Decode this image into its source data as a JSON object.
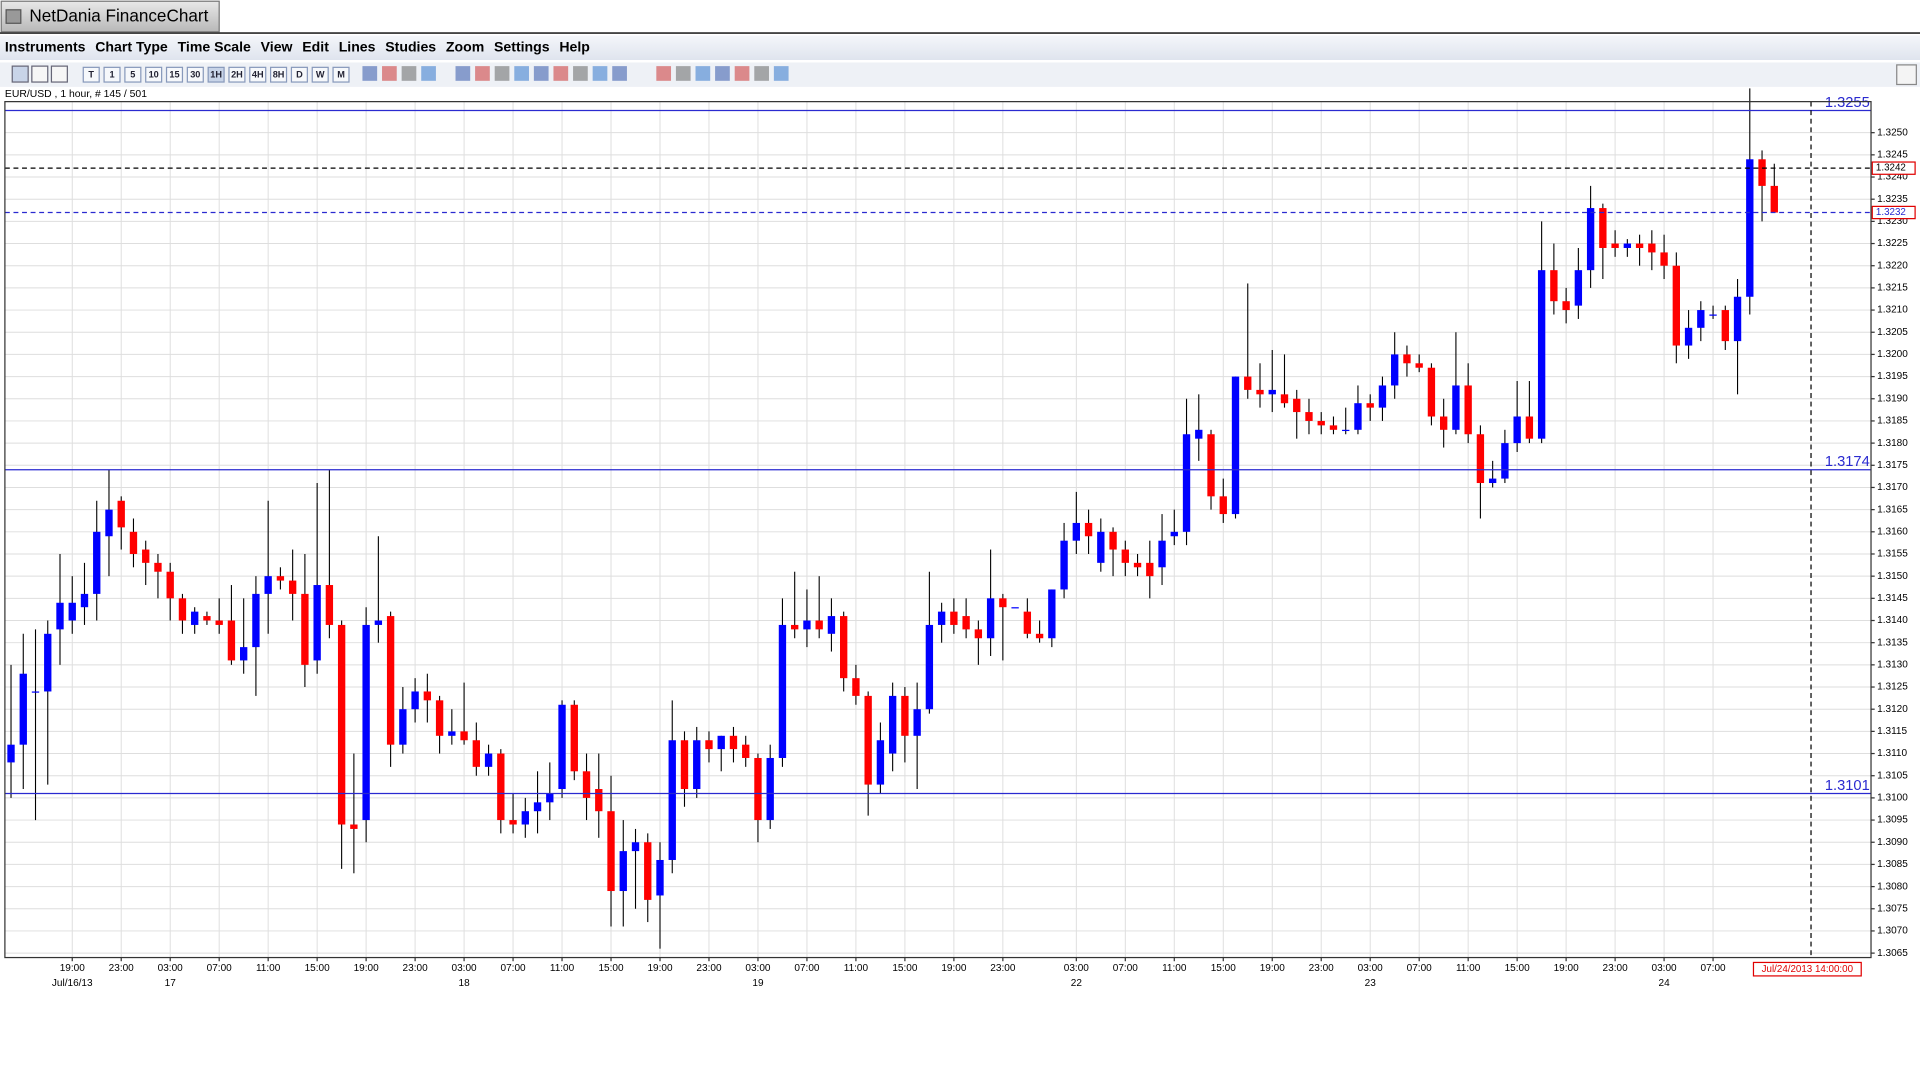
{
  "window_title": "NetDania FinanceChart",
  "menu": [
    "Instruments",
    "Chart Type",
    "Time Scale",
    "View",
    "Edit",
    "Lines",
    "Studies",
    "Zoom",
    "Settings",
    "Help"
  ],
  "toolbar": [
    "T",
    "1",
    "5",
    "10",
    "15",
    "30",
    "1H",
    "2H",
    "4H",
    "8H",
    "D",
    "W",
    "M"
  ],
  "chart_data": {
    "type": "candlestick",
    "subtitle": "EUR/USD , 1 hour, # 145 / 501",
    "up_color": "#0000ff",
    "down_color": "#ff0000",
    "grid": true,
    "ylim": [
      1.3064,
      1.3257
    ],
    "yticks": [
      {
        "value": 1.3065,
        "label": "1.3065"
      },
      {
        "value": 1.307,
        "label": "1.3070"
      },
      {
        "value": 1.3075,
        "label": "1.3075"
      },
      {
        "value": 1.308,
        "label": "1.3080"
      },
      {
        "value": 1.3085,
        "label": "1.3085"
      },
      {
        "value": 1.309,
        "label": "1.3090"
      },
      {
        "value": 1.3095,
        "label": "1.3095"
      },
      {
        "value": 1.31,
        "label": "1.3100"
      },
      {
        "value": 1.3105,
        "label": "1.3105"
      },
      {
        "value": 1.311,
        "label": "1.3110"
      },
      {
        "value": 1.3115,
        "label": "1.3115"
      },
      {
        "value": 1.312,
        "label": "1.3120"
      },
      {
        "value": 1.3125,
        "label": "1.3125"
      },
      {
        "value": 1.313,
        "label": "1.3130"
      },
      {
        "value": 1.3135,
        "label": "1.3135"
      },
      {
        "value": 1.314,
        "label": "1.3140"
      },
      {
        "value": 1.3145,
        "label": "1.3145"
      },
      {
        "value": 1.315,
        "label": "1.3150"
      },
      {
        "value": 1.3155,
        "label": "1.3155"
      },
      {
        "value": 1.316,
        "label": "1.3160"
      },
      {
        "value": 1.3165,
        "label": "1.3165"
      },
      {
        "value": 1.317,
        "label": "1.3170"
      },
      {
        "value": 1.3175,
        "label": "1.3175"
      },
      {
        "value": 1.318,
        "label": "1.3180"
      },
      {
        "value": 1.3185,
        "label": "1.3185"
      },
      {
        "value": 1.319,
        "label": "1.3190"
      },
      {
        "value": 1.3195,
        "label": "1.3195"
      },
      {
        "value": 1.32,
        "label": "1.3200"
      },
      {
        "value": 1.3205,
        "label": "1.3205"
      },
      {
        "value": 1.321,
        "label": "1.3210"
      },
      {
        "value": 1.3215,
        "label": "1.3215"
      },
      {
        "value": 1.322,
        "label": "1.3220"
      },
      {
        "value": 1.3225,
        "label": "1.3225"
      },
      {
        "value": 1.323,
        "label": "1.3230"
      },
      {
        "value": 1.3235,
        "label": "1.3235"
      },
      {
        "value": 1.324,
        "label": "1.3240"
      },
      {
        "value": 1.3245,
        "label": "1.3245"
      },
      {
        "value": 1.325,
        "label": "1.3250"
      }
    ],
    "xticks": [
      {
        "value": 5,
        "label": "19:00"
      },
      {
        "value": 9,
        "label": "23:00"
      },
      {
        "value": 13,
        "label": "03:00"
      },
      {
        "value": 17,
        "label": "07:00"
      },
      {
        "value": 21,
        "label": "11:00"
      },
      {
        "value": 25,
        "label": "15:00"
      },
      {
        "value": 29,
        "label": "19:00"
      },
      {
        "value": 33,
        "label": "23:00"
      },
      {
        "value": 37,
        "label": "03:00"
      },
      {
        "value": 41,
        "label": "07:00"
      },
      {
        "value": 45,
        "label": "11:00"
      },
      {
        "value": 49,
        "label": "15:00"
      },
      {
        "value": 53,
        "label": "19:00"
      },
      {
        "value": 57,
        "label": "23:00"
      },
      {
        "value": 61,
        "label": "03:00"
      },
      {
        "value": 65,
        "label": "07:00"
      },
      {
        "value": 69,
        "label": "11:00"
      },
      {
        "value": 73,
        "label": "15:00"
      },
      {
        "value": 77,
        "label": "19:00"
      },
      {
        "value": 81,
        "label": "23:00"
      },
      {
        "value": 87,
        "label": "03:00"
      },
      {
        "value": 91,
        "label": "07:00"
      },
      {
        "value": 95,
        "label": "11:00"
      },
      {
        "value": 99,
        "label": "15:00"
      },
      {
        "value": 103,
        "label": "19:00"
      },
      {
        "value": 107,
        "label": "23:00"
      },
      {
        "value": 111,
        "label": "03:00"
      },
      {
        "value": 115,
        "label": "07:00"
      },
      {
        "value": 119,
        "label": "11:00"
      },
      {
        "value": 123,
        "label": "15:00"
      },
      {
        "value": 127,
        "label": "19:00"
      },
      {
        "value": 131,
        "label": "23:00"
      },
      {
        "value": 135,
        "label": "03:00"
      },
      {
        "value": 139,
        "label": "07:00"
      }
    ],
    "xdates": [
      {
        "value": 5,
        "label": "Jul/16/13"
      },
      {
        "value": 13,
        "label": "17"
      },
      {
        "value": 37,
        "label": "18"
      },
      {
        "value": 61,
        "label": "19"
      },
      {
        "value": 87,
        "label": "22"
      },
      {
        "value": 111,
        "label": "23"
      },
      {
        "value": 135,
        "label": "24"
      }
    ],
    "levels": [
      {
        "value": 1.3255,
        "label": "1.3255",
        "color": "#2a2ad0",
        "dashed": false,
        "boxed": false
      },
      {
        "value": 1.3174,
        "label": "1.3174",
        "color": "#2a2ad0",
        "dashed": false,
        "boxed": false
      },
      {
        "value": 1.3101,
        "label": "1.3101",
        "color": "#2a2ad0",
        "dashed": false,
        "boxed": false
      },
      {
        "value": 1.3242,
        "label": "1.3242",
        "color": "#000000",
        "dashed": true,
        "boxed": true
      },
      {
        "value": 1.3232,
        "label": "1.3232",
        "color": "#2a2ad0",
        "dashed": true,
        "boxed": true
      }
    ],
    "cursor": {
      "value": 147,
      "label": "Jul/24/2013 14:00:00"
    },
    "ohlc": [
      [
        1.3108,
        1.313,
        1.31,
        1.3112
      ],
      [
        1.3112,
        1.3137,
        1.3102,
        1.3128
      ],
      [
        1.3124,
        1.3138,
        1.3095,
        1.3124
      ],
      [
        1.3124,
        1.314,
        1.3103,
        1.3137
      ],
      [
        1.3138,
        1.3155,
        1.313,
        1.3144
      ],
      [
        1.314,
        1.315,
        1.3137,
        1.3144
      ],
      [
        1.3143,
        1.3153,
        1.3139,
        1.3146
      ],
      [
        1.3146,
        1.3167,
        1.314,
        1.316
      ],
      [
        1.3159,
        1.3174,
        1.315,
        1.3165
      ],
      [
        1.3167,
        1.3168,
        1.3156,
        1.3161
      ],
      [
        1.316,
        1.3163,
        1.3152,
        1.3155
      ],
      [
        1.3156,
        1.3158,
        1.3148,
        1.3153
      ],
      [
        1.3153,
        1.3155,
        1.3145,
        1.3151
      ],
      [
        1.3151,
        1.3153,
        1.314,
        1.3145
      ],
      [
        1.3145,
        1.3146,
        1.3137,
        1.314
      ],
      [
        1.3139,
        1.3143,
        1.3137,
        1.3142
      ],
      [
        1.3141,
        1.3142,
        1.3139,
        1.314
      ],
      [
        1.314,
        1.3145,
        1.3137,
        1.3139
      ],
      [
        1.314,
        1.3148,
        1.313,
        1.3131
      ],
      [
        1.3131,
        1.3145,
        1.3128,
        1.3134
      ],
      [
        1.3134,
        1.315,
        1.3123,
        1.3146
      ],
      [
        1.3146,
        1.3167,
        1.3137,
        1.315
      ],
      [
        1.315,
        1.3152,
        1.3147,
        1.3149
      ],
      [
        1.3149,
        1.3156,
        1.314,
        1.3146
      ],
      [
        1.3146,
        1.3155,
        1.3125,
        1.313
      ],
      [
        1.3131,
        1.3171,
        1.3128,
        1.3148
      ],
      [
        1.3148,
        1.3174,
        1.3136,
        1.3139
      ],
      [
        1.3139,
        1.314,
        1.3084,
        1.3094
      ],
      [
        1.3094,
        1.311,
        1.3083,
        1.3093
      ],
      [
        1.3095,
        1.3143,
        1.309,
        1.3139
      ],
      [
        1.3139,
        1.3159,
        1.3135,
        1.314
      ],
      [
        1.3141,
        1.3142,
        1.3107,
        1.3112
      ],
      [
        1.3112,
        1.3125,
        1.311,
        1.312
      ],
      [
        1.312,
        1.3127,
        1.3117,
        1.3124
      ],
      [
        1.3124,
        1.3128,
        1.3117,
        1.3122
      ],
      [
        1.3122,
        1.3123,
        1.311,
        1.3114
      ],
      [
        1.3114,
        1.312,
        1.3112,
        1.3115
      ],
      [
        1.3115,
        1.3126,
        1.3112,
        1.3113
      ],
      [
        1.3113,
        1.3117,
        1.3105,
        1.3107
      ],
      [
        1.3107,
        1.3112,
        1.3105,
        1.311
      ],
      [
        1.311,
        1.3111,
        1.3092,
        1.3095
      ],
      [
        1.3095,
        1.3101,
        1.3092,
        1.3094
      ],
      [
        1.3094,
        1.31,
        1.3091,
        1.3097
      ],
      [
        1.3097,
        1.3106,
        1.3092,
        1.3099
      ],
      [
        1.3099,
        1.3108,
        1.3095,
        1.3101
      ],
      [
        1.3102,
        1.3122,
        1.31,
        1.3121
      ],
      [
        1.3121,
        1.3122,
        1.3104,
        1.3106
      ],
      [
        1.3106,
        1.311,
        1.3095,
        1.31
      ],
      [
        1.3102,
        1.311,
        1.3091,
        1.3097
      ],
      [
        1.3097,
        1.3105,
        1.3071,
        1.3079
      ],
      [
        1.3079,
        1.3095,
        1.3071,
        1.3088
      ],
      [
        1.3088,
        1.3093,
        1.3075,
        1.309
      ],
      [
        1.309,
        1.3092,
        1.3072,
        1.3077
      ],
      [
        1.3078,
        1.309,
        1.3066,
        1.3086
      ],
      [
        1.3086,
        1.3122,
        1.3083,
        1.3113
      ],
      [
        1.3113,
        1.3115,
        1.3098,
        1.3102
      ],
      [
        1.3102,
        1.3116,
        1.31,
        1.3113
      ],
      [
        1.3113,
        1.3115,
        1.3108,
        1.3111
      ],
      [
        1.3111,
        1.3114,
        1.3106,
        1.3114
      ],
      [
        1.3114,
        1.3116,
        1.3108,
        1.3111
      ],
      [
        1.3112,
        1.3114,
        1.3107,
        1.3109
      ],
      [
        1.3109,
        1.311,
        1.309,
        1.3095
      ],
      [
        1.3095,
        1.3112,
        1.3093,
        1.3109
      ],
      [
        1.3109,
        1.3145,
        1.3107,
        1.3139
      ],
      [
        1.3139,
        1.3151,
        1.3136,
        1.3138
      ],
      [
        1.3138,
        1.3147,
        1.3134,
        1.314
      ],
      [
        1.314,
        1.315,
        1.3136,
        1.3138
      ],
      [
        1.3137,
        1.3145,
        1.3133,
        1.3141
      ],
      [
        1.3141,
        1.3142,
        1.3124,
        1.3127
      ],
      [
        1.3127,
        1.313,
        1.3121,
        1.3123
      ],
      [
        1.3123,
        1.3124,
        1.3096,
        1.3103
      ],
      [
        1.3103,
        1.3117,
        1.3101,
        1.3113
      ],
      [
        1.311,
        1.3126,
        1.3106,
        1.3123
      ],
      [
        1.3123,
        1.3125,
        1.3108,
        1.3114
      ],
      [
        1.3114,
        1.3126,
        1.3102,
        1.312
      ],
      [
        1.312,
        1.3151,
        1.3119,
        1.3139
      ],
      [
        1.3139,
        1.3144,
        1.3135,
        1.3142
      ],
      [
        1.3142,
        1.3145,
        1.3137,
        1.3139
      ],
      [
        1.3141,
        1.3145,
        1.3136,
        1.3138
      ],
      [
        1.3138,
        1.314,
        1.313,
        1.3136
      ],
      [
        1.3136,
        1.3156,
        1.3132,
        1.3145
      ],
      [
        1.3145,
        1.3146,
        1.3131,
        1.3143
      ],
      [
        1.3143,
        1.3143,
        1.3143,
        1.3143
      ],
      [
        1.3142,
        1.3145,
        1.3136,
        1.3137
      ],
      [
        1.3137,
        1.314,
        1.3135,
        1.3136
      ],
      [
        1.3136,
        1.3147,
        1.3134,
        1.3147
      ],
      [
        1.3147,
        1.3162,
        1.3145,
        1.3158
      ],
      [
        1.3158,
        1.3169,
        1.3155,
        1.3162
      ],
      [
        1.3162,
        1.3165,
        1.3155,
        1.3159
      ],
      [
        1.3153,
        1.3163,
        1.3151,
        1.316
      ],
      [
        1.316,
        1.3161,
        1.315,
        1.3156
      ],
      [
        1.3156,
        1.3158,
        1.315,
        1.3153
      ],
      [
        1.3153,
        1.3155,
        1.315,
        1.3152
      ],
      [
        1.3153,
        1.3158,
        1.3145,
        1.315
      ],
      [
        1.3152,
        1.3164,
        1.3148,
        1.3158
      ],
      [
        1.3159,
        1.3165,
        1.3157,
        1.316
      ],
      [
        1.316,
        1.319,
        1.3157,
        1.3182
      ],
      [
        1.3181,
        1.3191,
        1.3176,
        1.3183
      ],
      [
        1.3182,
        1.3183,
        1.3165,
        1.3168
      ],
      [
        1.3168,
        1.3172,
        1.3162,
        1.3164
      ],
      [
        1.3164,
        1.3195,
        1.3163,
        1.3195
      ],
      [
        1.3195,
        1.3216,
        1.319,
        1.3192
      ],
      [
        1.3192,
        1.3198,
        1.3188,
        1.3191
      ],
      [
        1.3191,
        1.3201,
        1.3187,
        1.3192
      ],
      [
        1.3191,
        1.32,
        1.3188,
        1.3189
      ],
      [
        1.319,
        1.3192,
        1.3181,
        1.3187
      ],
      [
        1.3187,
        1.319,
        1.3182,
        1.3185
      ],
      [
        1.3185,
        1.3187,
        1.3182,
        1.3184
      ],
      [
        1.3184,
        1.3186,
        1.3182,
        1.3183
      ],
      [
        1.3183,
        1.3188,
        1.3182,
        1.3183
      ],
      [
        1.3183,
        1.3193,
        1.3182,
        1.3189
      ],
      [
        1.3189,
        1.3191,
        1.3185,
        1.3188
      ],
      [
        1.3188,
        1.3195,
        1.3185,
        1.3193
      ],
      [
        1.3193,
        1.3205,
        1.319,
        1.32
      ],
      [
        1.32,
        1.3202,
        1.3195,
        1.3198
      ],
      [
        1.3198,
        1.32,
        1.3196,
        1.3197
      ],
      [
        1.3197,
        1.3198,
        1.3184,
        1.3186
      ],
      [
        1.3186,
        1.319,
        1.3179,
        1.3183
      ],
      [
        1.3183,
        1.3205,
        1.3182,
        1.3193
      ],
      [
        1.3193,
        1.3198,
        1.318,
        1.3182
      ],
      [
        1.3182,
        1.3184,
        1.3163,
        1.3171
      ],
      [
        1.3171,
        1.3176,
        1.317,
        1.3172
      ],
      [
        1.3172,
        1.3183,
        1.3171,
        1.318
      ],
      [
        1.318,
        1.3194,
        1.3178,
        1.3186
      ],
      [
        1.3186,
        1.3194,
        1.318,
        1.3181
      ],
      [
        1.3181,
        1.323,
        1.318,
        1.3219
      ],
      [
        1.3219,
        1.3225,
        1.3209,
        1.3212
      ],
      [
        1.3212,
        1.3215,
        1.3207,
        1.321
      ],
      [
        1.3211,
        1.3224,
        1.3208,
        1.3219
      ],
      [
        1.3219,
        1.3238,
        1.3215,
        1.3233
      ],
      [
        1.3233,
        1.3234,
        1.3217,
        1.3224
      ],
      [
        1.3225,
        1.3228,
        1.3222,
        1.3224
      ],
      [
        1.3224,
        1.3226,
        1.3222,
        1.3225
      ],
      [
        1.3225,
        1.3227,
        1.322,
        1.3224
      ],
      [
        1.3225,
        1.3228,
        1.3219,
        1.3223
      ],
      [
        1.3223,
        1.3227,
        1.3217,
        1.322
      ],
      [
        1.322,
        1.3223,
        1.3198,
        1.3202
      ],
      [
        1.3202,
        1.321,
        1.3199,
        1.3206
      ],
      [
        1.3206,
        1.3212,
        1.3203,
        1.321
      ],
      [
        1.3209,
        1.3211,
        1.3208,
        1.3209
      ],
      [
        1.321,
        1.3211,
        1.3201,
        1.3203
      ],
      [
        1.3203,
        1.3217,
        1.3191,
        1.3213
      ],
      [
        1.3213,
        1.326,
        1.3209,
        1.3244
      ],
      [
        1.3244,
        1.3246,
        1.323,
        1.3238
      ],
      [
        1.3238,
        1.3243,
        1.3232,
        1.3232
      ]
    ]
  }
}
